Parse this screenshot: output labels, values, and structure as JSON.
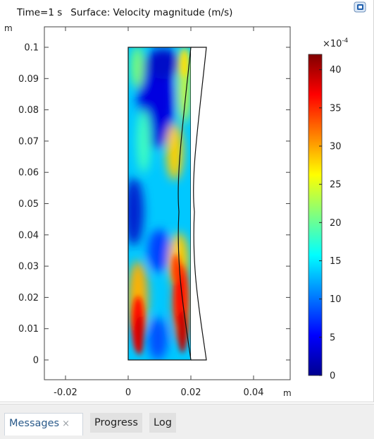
{
  "plot": {
    "time_label": "Time=1 s",
    "surface_label": "Surface: Velocity magnitude (m/s)",
    "axis_unit_y": "m",
    "axis_unit_x": "m"
  },
  "colorbar": {
    "exponent_label": "×10",
    "exponent": "-4",
    "ticks": [
      "0",
      "5",
      "10",
      "15",
      "20",
      "25",
      "30",
      "35",
      "40"
    ],
    "colors": [
      "#00008f",
      "#0000ff",
      "#00ffff",
      "#ffff00",
      "#ff0000",
      "#800000"
    ]
  },
  "chart_data": {
    "type": "heatmap",
    "title": "Surface: Velocity magnitude (m/s)",
    "subtitle": "Time=1 s",
    "xlabel": "m",
    "ylabel": "m",
    "xlim": [
      -0.028,
      0.052
    ],
    "ylim": [
      -0.007,
      0.107
    ],
    "x_ticks": [
      -0.02,
      0,
      0.02,
      0.04
    ],
    "x_tick_labels": [
      "-0.02",
      "0",
      "0.02",
      "0.04"
    ],
    "y_ticks": [
      0,
      0.01,
      0.02,
      0.03,
      0.04,
      0.05,
      0.06,
      0.07,
      0.08,
      0.09,
      0.1
    ],
    "y_tick_labels": [
      "0",
      "0.01",
      "0.02",
      "0.03",
      "0.04",
      "0.05",
      "0.06",
      "0.07",
      "0.08",
      "0.09",
      "0.1"
    ],
    "color_range": [
      0,
      0.0042
    ],
    "colorbar_ticks": [
      0,
      5,
      10,
      15,
      20,
      25,
      30,
      35,
      40
    ],
    "colorbar_scale": "×10^-4",
    "fluid_domain": {
      "x": [
        0,
        0.02
      ],
      "y": [
        0,
        0.1
      ]
    },
    "deformed_wall": {
      "x_top_bottom": 0.025,
      "x_min_at_middle": 0.016,
      "y_middle": 0.05
    },
    "hotspots": [
      {
        "x": 0.003,
        "y": 0.01,
        "value": 40
      },
      {
        "x": 0.017,
        "y": 0.01,
        "value": 40
      },
      {
        "x": 0.017,
        "y": 0.025,
        "value": 35
      },
      {
        "x": 0.001,
        "y": 0.1,
        "value": 20
      },
      {
        "x": 0.019,
        "y": 0.1,
        "value": 25
      }
    ],
    "lows": [
      {
        "x": 0.007,
        "y": 0.08,
        "value": 2
      },
      {
        "x": 0.002,
        "y": 0.045,
        "value": 3
      },
      {
        "x": 0.01,
        "y": 0.0,
        "value": 8
      }
    ]
  },
  "tabs": {
    "messages": "Messages",
    "close_glyph": "×",
    "progress": "Progress",
    "log": "Log"
  }
}
